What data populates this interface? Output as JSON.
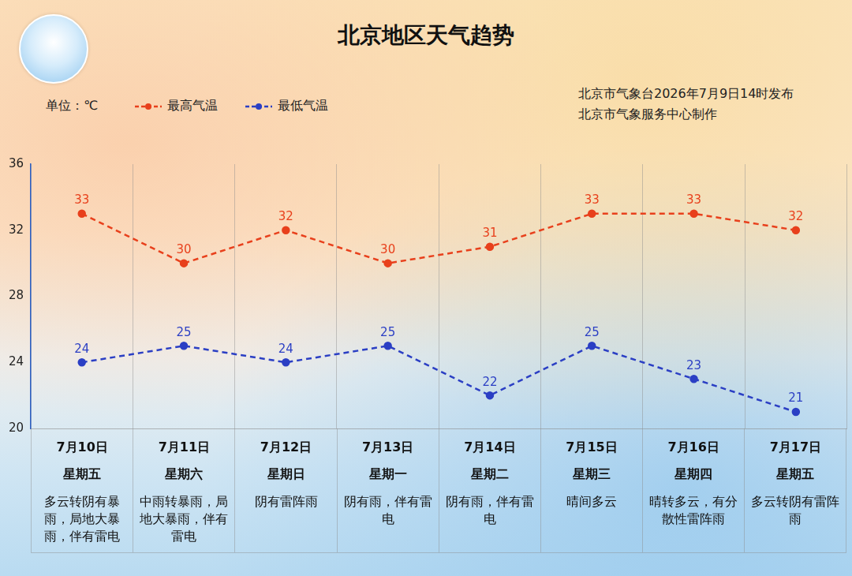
{
  "chart_data": {
    "type": "line",
    "title": "北京地区天气趋势",
    "unit_label": "单位：℃",
    "source": [
      "北京市气象台2026年7月9日14时发布",
      "北京市气象服务中心制作"
    ],
    "categories": [
      "7月10日",
      "7月11日",
      "7月12日",
      "7月13日",
      "7月14日",
      "7月15日",
      "7月16日",
      "7月17日"
    ],
    "weekdays": [
      "星期五",
      "星期六",
      "星期日",
      "星期一",
      "星期二",
      "星期三",
      "星期四",
      "星期五"
    ],
    "weather": [
      "多云转阴有暴雨，局地大暴雨，伴有雷电",
      "中雨转暴雨，局地大暴雨，伴有雷电",
      "阴有雷阵雨",
      "阴有雨，伴有雷电",
      "阴有雨，伴有雷电",
      "晴间多云",
      "晴转多云，有分散性雷阵雨",
      "多云转阴有雷阵雨"
    ],
    "series": [
      {
        "name": "最高气温",
        "color": "#e8401c",
        "marker": "circle",
        "line_style": "dashed",
        "values": [
          33,
          30,
          32,
          30,
          31,
          33,
          33,
          32
        ]
      },
      {
        "name": "最低气温",
        "color": "#2b3fc4",
        "marker": "circle",
        "line_style": "dashed",
        "values": [
          24,
          25,
          24,
          25,
          22,
          25,
          23,
          21
        ]
      }
    ],
    "ylim": [
      20,
      36
    ],
    "yticks": [
      20,
      24,
      28,
      32,
      36
    ],
    "grid": true,
    "data_labels": true,
    "legend": "top-left"
  }
}
